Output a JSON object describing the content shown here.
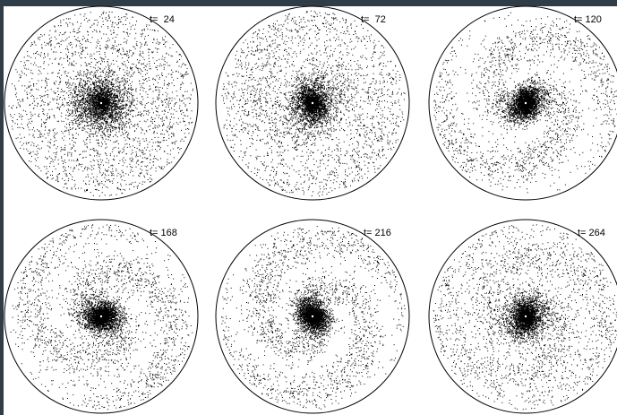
{
  "colors": {
    "frame": "#2f3d48",
    "paper": "#ffffff",
    "ink": "#000000"
  },
  "panels": [
    {
      "label": "t=  24",
      "time": 24,
      "pattern": "diffuse-disk-no-arms"
    },
    {
      "label": "t=  72",
      "time": 72,
      "pattern": "weak-spiral"
    },
    {
      "label": "t= 120",
      "time": 120,
      "pattern": "two-arm-spiral"
    },
    {
      "label": "t= 168",
      "time": 168,
      "pattern": "two-arm-spiral"
    },
    {
      "label": "t= 216",
      "time": 216,
      "pattern": "two-arm-spiral"
    },
    {
      "label": "t= 264",
      "time": 264,
      "pattern": "diffuse-spiral"
    }
  ]
}
